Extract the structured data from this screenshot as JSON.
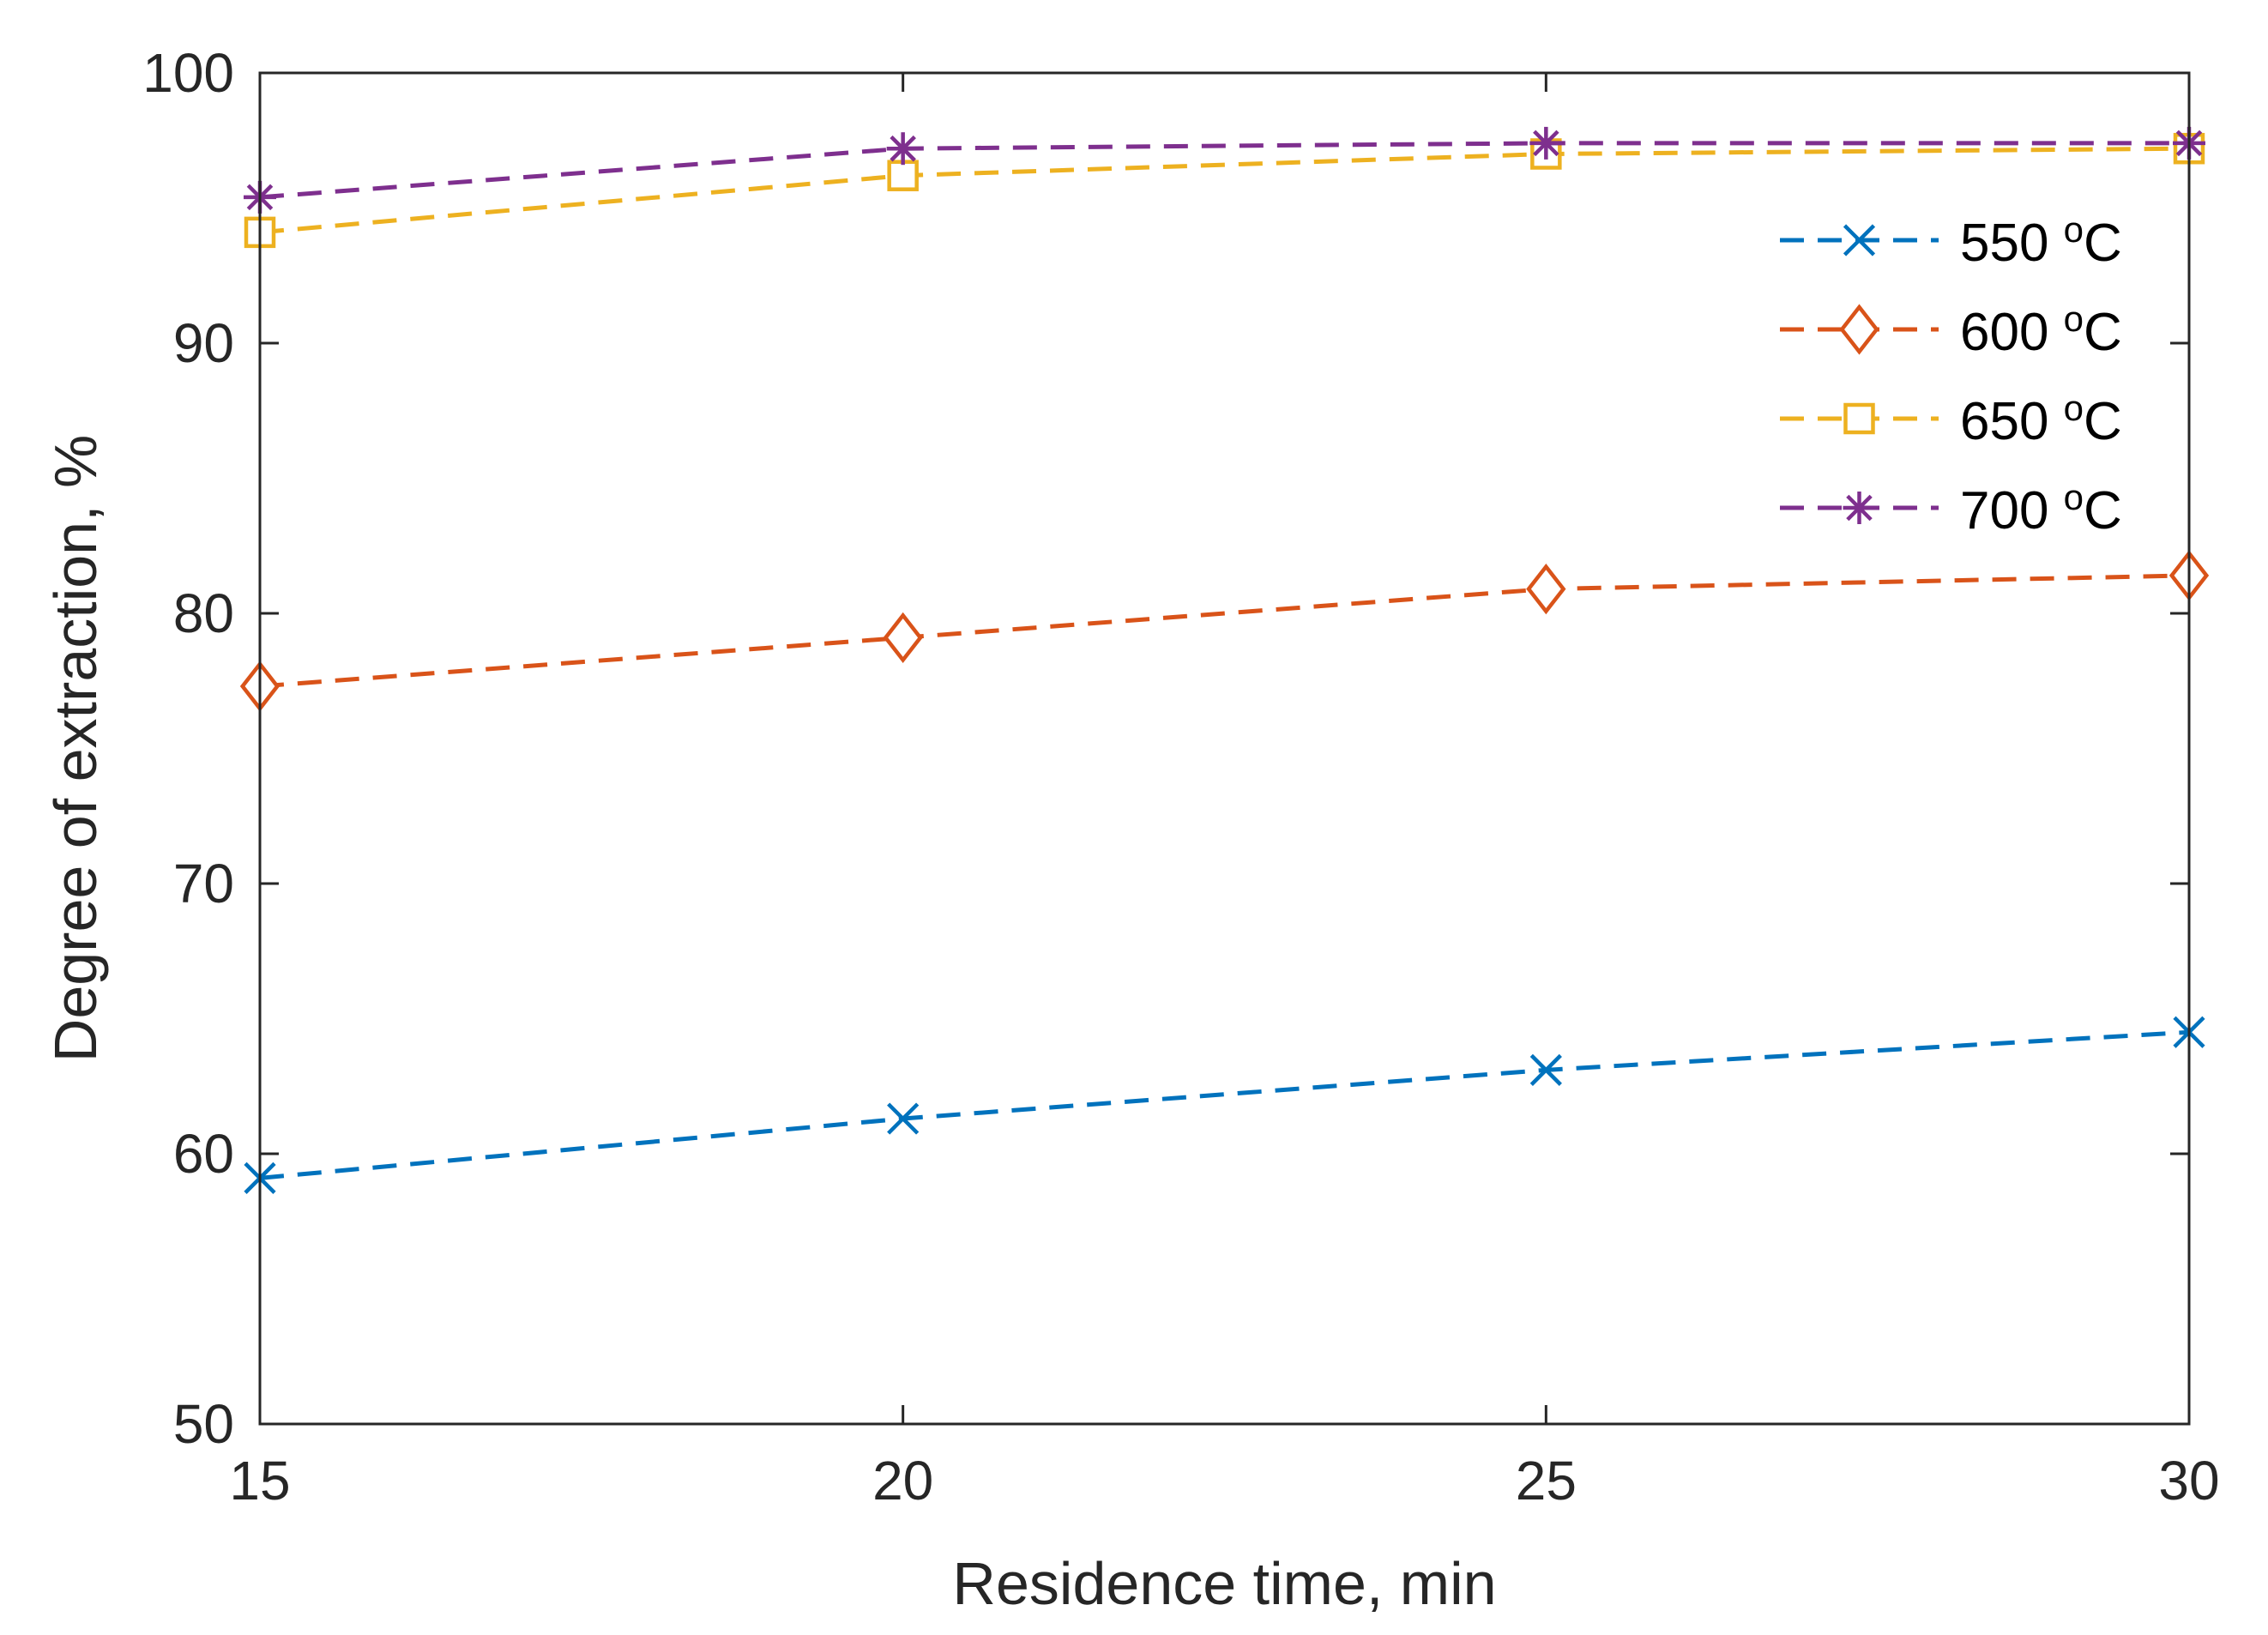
{
  "chart_data": {
    "type": "line",
    "title": "",
    "xlabel": "Residence time, min",
    "ylabel": "Degree of extraction, %",
    "x": [
      15,
      20,
      25,
      30
    ],
    "xlim": [
      15,
      30
    ],
    "ylim": [
      50,
      100
    ],
    "xticks": [
      "15",
      "20",
      "25",
      "30"
    ],
    "yticks": [
      "50",
      "60",
      "70",
      "80",
      "90",
      "100"
    ],
    "grid": false,
    "legend_position": "top-right",
    "series": [
      {
        "name": "550",
        "unit": "oC",
        "marker": "x",
        "color": "#0072BD",
        "values": [
          59.1,
          61.3,
          63.1,
          64.5
        ]
      },
      {
        "name": "600",
        "unit": "oC",
        "marker": "diamond",
        "color": "#D95319",
        "values": [
          77.3,
          79.1,
          80.9,
          81.4
        ]
      },
      {
        "name": "650",
        "unit": "oC",
        "marker": "square",
        "color": "#EDB120",
        "values": [
          94.1,
          96.2,
          97.0,
          97.2
        ]
      },
      {
        "name": "700",
        "unit": "oC",
        "marker": "asterisk",
        "color": "#7E2F8E",
        "values": [
          95.4,
          97.2,
          97.4,
          97.4
        ]
      }
    ]
  }
}
